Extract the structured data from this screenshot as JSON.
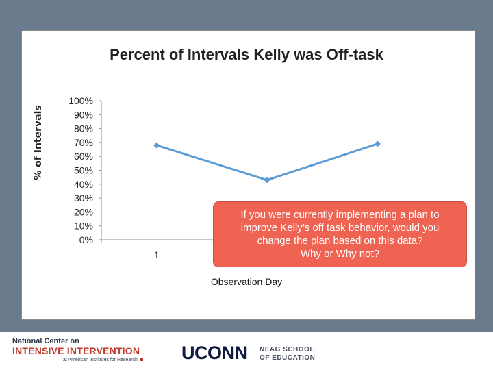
{
  "chart_data": {
    "type": "line",
    "title": "Percent of Intervals Kelly was Off-task",
    "xlabel": "Observation Day",
    "ylabel": "% of Intervals",
    "x": [
      1,
      2,
      3
    ],
    "x_tick_labels": [
      "1"
    ],
    "values": [
      0.68,
      0.43,
      0.69
    ],
    "ylim": [
      0,
      1
    ],
    "y_tick_labels": [
      "100%",
      "90%",
      "80%",
      "70%",
      "60%",
      "50%",
      "40%",
      "30%",
      "20%",
      "10%",
      "0%"
    ],
    "series_color": "#5b9bd5",
    "grid": false,
    "legend": "none"
  },
  "callout": {
    "lines": [
      "If you were currently implementing a plan to",
      "improve Kelly’s off task behavior, would you",
      "change the plan based on this data?",
      "Why or Why not?"
    ],
    "color": "#ee6352"
  },
  "footer": {
    "ncii": {
      "line1": "National Center on",
      "line2": "INTENSIVE INTERVENTION",
      "line3": "at American Institutes for Research"
    },
    "uconn": {
      "wordmark": "UCONN",
      "school_line1": "NEAG SCHOOL",
      "school_line2": "OF EDUCATION"
    }
  },
  "colors": {
    "background": "#697b8c",
    "accent_red": "#c0392b",
    "navy": "#0e1a3e"
  }
}
